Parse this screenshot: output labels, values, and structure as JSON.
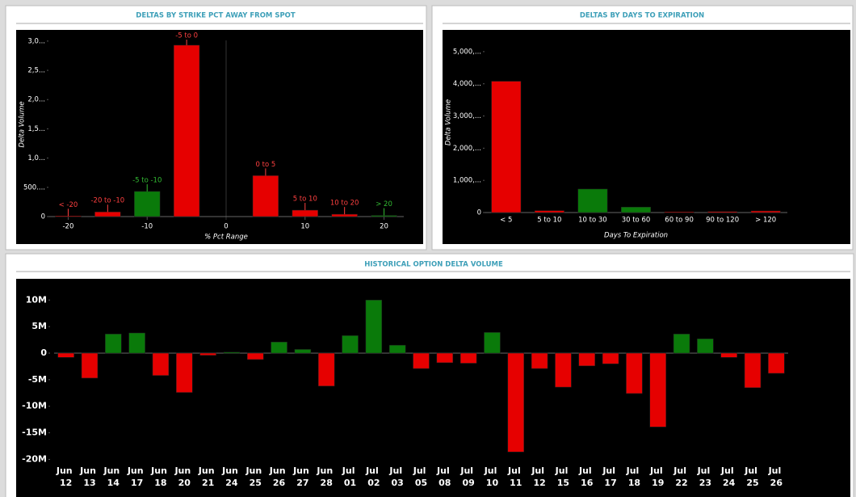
{
  "chart_data": [
    {
      "type": "bar",
      "title": "DELTAS BY STRIKE PCT AWAY FROM SPOT",
      "ylabel": "Delta Volume",
      "xlabel": "% Pct Range",
      "categories": [
        "< -20",
        "-20 to -10",
        "-5 to -10",
        "-5 to 0",
        "0 to 5",
        "5 to 10",
        "10 to 20",
        "> 20"
      ],
      "x": [
        -20,
        -15,
        -10,
        -5,
        5,
        10,
        15,
        20
      ],
      "values": [
        10,
        80,
        430,
        2930,
        700,
        110,
        40,
        20
      ],
      "colors": [
        "#e60000",
        "#e60000",
        "#0a7a0a",
        "#e60000",
        "#e60000",
        "#e60000",
        "#e60000",
        "#0a7a0a"
      ],
      "xlim": [
        -22.5,
        22.5
      ],
      "xticks": [
        -20,
        -10,
        0,
        10,
        20
      ],
      "ylim": [
        0,
        3150
      ],
      "yticks": [
        0,
        {
          "value": 500,
          "label": "500...."
        },
        {
          "value": 1000,
          "label": "1,0..."
        },
        {
          "value": 1500,
          "label": "1,5..."
        },
        {
          "value": 2000,
          "label": "2,0..."
        },
        {
          "value": 2500,
          "label": "2,5..."
        },
        {
          "value": 3000,
          "label": "3,0..."
        }
      ]
    },
    {
      "type": "bar",
      "title": "DELTAS BY DAYS TO EXPIRATION",
      "ylabel": "Delta Volume",
      "xlabel": "Days To Expiration",
      "categories": [
        "< 5",
        "5 to 10",
        "10 to 30",
        "30 to 60",
        "60 to 90",
        "90 to 120",
        "> 120"
      ],
      "values": [
        4080,
        60,
        730,
        170,
        20,
        30,
        50
      ],
      "colors": [
        "#e60000",
        "#e60000",
        "#0a7a0a",
        "#0a7a0a",
        "#e60000",
        "#e60000",
        "#e60000"
      ],
      "ylim": [
        0,
        5600
      ],
      "yticks": [
        0,
        {
          "value": 1000,
          "label": "1,000,..."
        },
        {
          "value": 2000,
          "label": "2,000,..."
        },
        {
          "value": 3000,
          "label": "3,000,..."
        },
        {
          "value": 4000,
          "label": "4,000,..."
        },
        {
          "value": 5000,
          "label": "5,000,..."
        }
      ]
    },
    {
      "type": "bar",
      "title": "HISTORICAL OPTION DELTA VOLUME",
      "categories": [
        "Jun 12",
        "Jun 13",
        "Jun 14",
        "Jun 17",
        "Jun 18",
        "Jun 20",
        "Jun 21",
        "Jun 24",
        "Jun 25",
        "Jun 26",
        "Jun 27",
        "Jun 28",
        "Jul 01",
        "Jul 02",
        "Jul 03",
        "Jul 05",
        "Jul 08",
        "Jul 09",
        "Jul 10",
        "Jul 11",
        "Jul 12",
        "Jul 15",
        "Jul 16",
        "Jul 17",
        "Jul 18",
        "Jul 19",
        "Jul 22",
        "Jul 23",
        "Jul 24",
        "Jul 25",
        "Jul 26"
      ],
      "values": [
        -0.8,
        -4.7,
        3.6,
        3.8,
        -4.2,
        -7.4,
        -0.4,
        0.2,
        -1.2,
        2.1,
        0.7,
        -6.2,
        3.3,
        10.0,
        1.5,
        -2.9,
        -1.8,
        -1.9,
        3.9,
        -18.6,
        -2.9,
        -6.4,
        -2.4,
        -2.0,
        -7.6,
        -13.9,
        3.6,
        2.7,
        -0.8,
        -6.5,
        -3.8
      ],
      "color_positive": "#0a7a0a",
      "color_negative": "#e60000",
      "ylim": [
        -21,
        14
      ],
      "yticks": [
        {
          "value": -20,
          "label": "-20M"
        },
        {
          "value": -15,
          "label": "-15M"
        },
        {
          "value": -10,
          "label": "-10M"
        },
        {
          "value": -5,
          "label": "-5M"
        },
        0,
        {
          "value": 5,
          "label": "5M"
        },
        {
          "value": 10,
          "label": "10M"
        }
      ]
    }
  ]
}
